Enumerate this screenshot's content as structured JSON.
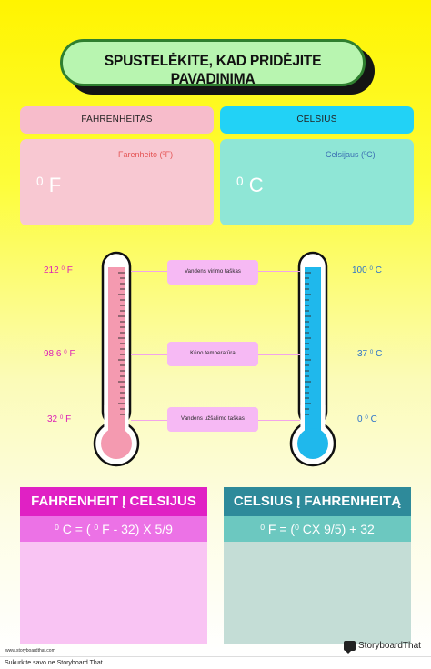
{
  "title": {
    "line1": "SPUSTELĖKITE, KAD PRIDĖJITE",
    "line2": "PAVADINIMĄ"
  },
  "headers": {
    "fahrenheit": "FAHRENHEITAS",
    "celsius": "CELSIUS"
  },
  "inputs": {
    "f_label": "Farenheito (",
    "f_sup": "0",
    "f_label_end": "F)",
    "f_unit_sup": "0",
    "f_unit": "F",
    "c_label": "Celsijaus (",
    "c_sup": "0",
    "c_label_end": "C)",
    "c_unit_sup": "0",
    "c_unit": "C"
  },
  "thermometer": {
    "left_labels": [
      {
        "num": "212",
        "sup": "0",
        "unit": "F"
      },
      {
        "num": "98,6",
        "sup": "0",
        "unit": "F"
      },
      {
        "num": "32",
        "sup": "0",
        "unit": "F"
      }
    ],
    "right_labels": [
      {
        "num": "100",
        "sup": "0",
        "unit": "C"
      },
      {
        "num": "37",
        "sup": "0",
        "unit": "C"
      },
      {
        "num": "0",
        "sup": "0",
        "unit": "C"
      }
    ],
    "mid_labels": [
      "Vandens virimo taškas",
      "Kūno temperatūra",
      "Vandens užšalimo taškas"
    ],
    "colors": {
      "left_fill": "#f49ab0",
      "right_fill": "#1fb8ec"
    }
  },
  "conversions": {
    "f_to_c_title": "FAHRENHEIT Į CELSIJUS",
    "f_to_c_formula": {
      "a": "0",
      "b": "C = (",
      "c": "0",
      "d": "F - 32) X 5/9"
    },
    "c_to_f_title": "CELSIUS Į FAHRENHEITĄ",
    "c_to_f_formula": {
      "a": "0",
      "b": "F = (",
      "c": "0",
      "d": "CX 9/5) + 32"
    }
  },
  "footer": {
    "url": "www.storyboardthat.com",
    "brand": "StoryboardThat",
    "note": "Sukurkite savo ne Storyboard That"
  }
}
